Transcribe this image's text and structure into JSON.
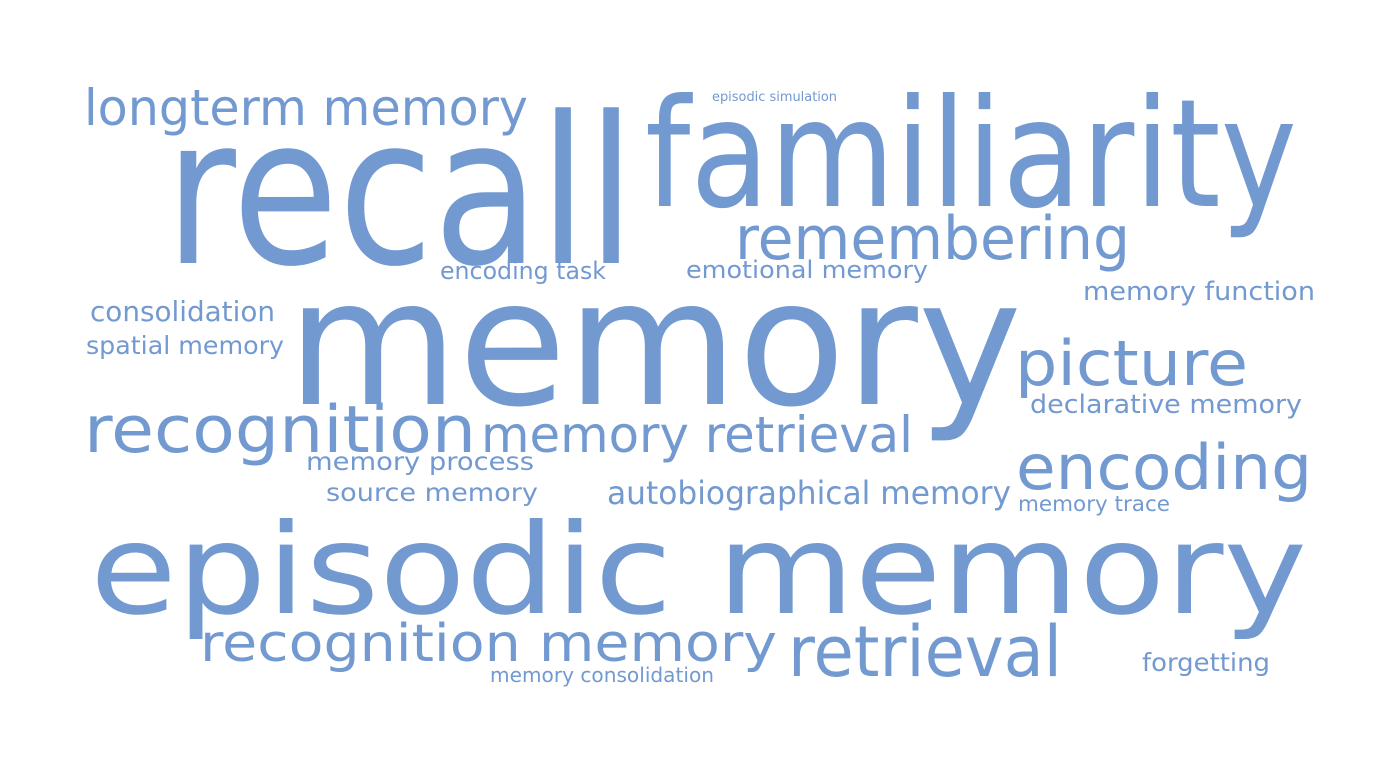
{
  "colors": {
    "word": "#7399d1",
    "background": "#ffffff"
  },
  "words": [
    {
      "id": "longterm-memory",
      "text": "longterm memory"
    },
    {
      "id": "episodic-simulation",
      "text": "episodic simulation"
    },
    {
      "id": "recall",
      "text": "recall"
    },
    {
      "id": "familiarity",
      "text": "familiarity"
    },
    {
      "id": "remembering",
      "text": "remembering"
    },
    {
      "id": "encoding-task",
      "text": "encoding task"
    },
    {
      "id": "emotional-memory",
      "text": "emotional memory"
    },
    {
      "id": "memory-function",
      "text": "memory function"
    },
    {
      "id": "consolidation",
      "text": "consolidation"
    },
    {
      "id": "spatial-memory",
      "text": "spatial memory"
    },
    {
      "id": "memory",
      "text": "memory"
    },
    {
      "id": "picture",
      "text": "picture"
    },
    {
      "id": "declarative-memory",
      "text": "declarative memory"
    },
    {
      "id": "recognition",
      "text": "recognition"
    },
    {
      "id": "memory-retrieval",
      "text": "memory retrieval"
    },
    {
      "id": "memory-process",
      "text": "memory process"
    },
    {
      "id": "encoding",
      "text": "encoding"
    },
    {
      "id": "source-memory",
      "text": "source memory"
    },
    {
      "id": "autobiographical-memory",
      "text": "autobiographical memory"
    },
    {
      "id": "memory-trace",
      "text": "memory trace"
    },
    {
      "id": "episodic-memory",
      "text": "episodic memory"
    },
    {
      "id": "recognition-memory",
      "text": "recognition memory"
    },
    {
      "id": "retrieval",
      "text": "retrieval"
    },
    {
      "id": "forgetting",
      "text": "forgetting"
    },
    {
      "id": "memory-consolidation",
      "text": "memory consolidation"
    }
  ]
}
